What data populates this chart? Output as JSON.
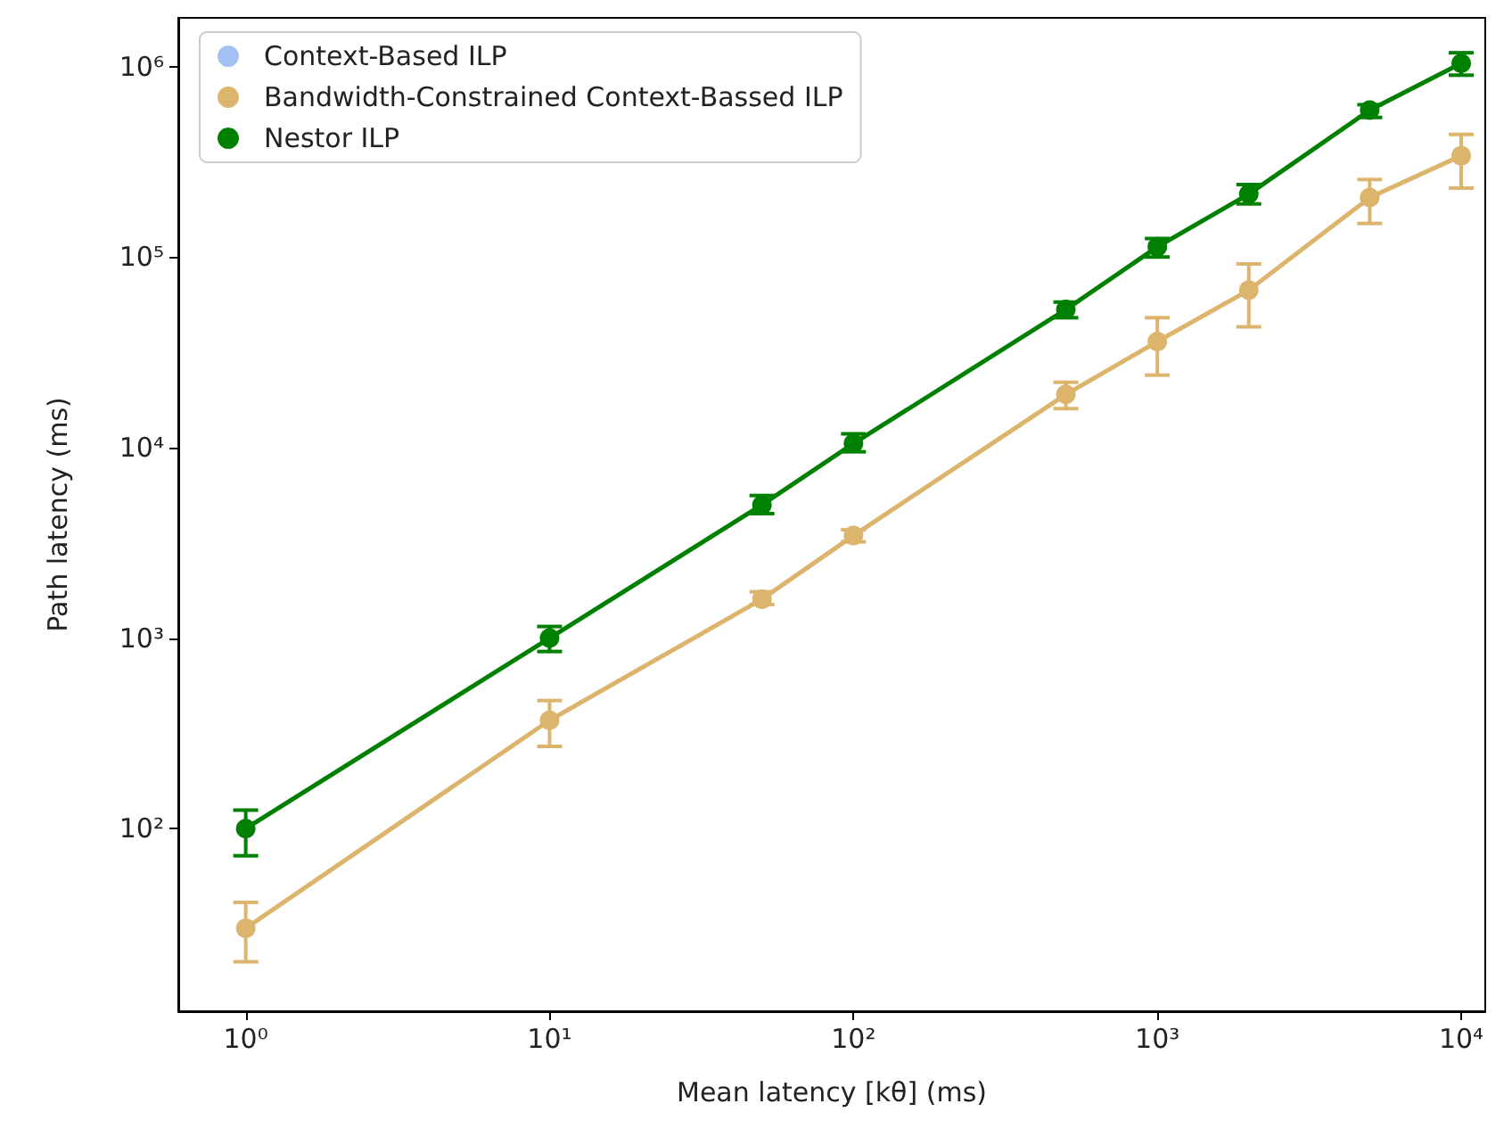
{
  "chart_data": {
    "type": "line",
    "xlabel": "Mean latency [kθ] (ms)",
    "ylabel": "Path latency (ms)",
    "log": "xy",
    "grid": false,
    "legend": "top left",
    "marker": "circle",
    "line_style": "solid",
    "x": [
      1,
      10,
      50,
      100,
      500,
      1000,
      2000,
      5000,
      10000
    ],
    "xlim": [
      0.6,
      12000
    ],
    "ylim": [
      11,
      1800000
    ],
    "xticks": [
      {
        "value": 1,
        "label": "10⁰"
      },
      {
        "value": 10,
        "label": "10¹"
      },
      {
        "value": 100,
        "label": "10²"
      },
      {
        "value": 1000,
        "label": "10³"
      },
      {
        "value": 10000,
        "label": "10⁴"
      }
    ],
    "yticks": [
      {
        "value": 100,
        "label": "10²"
      },
      {
        "value": 1000,
        "label": "10³"
      },
      {
        "value": 10000,
        "label": "10⁴"
      },
      {
        "value": 100000,
        "label": "10⁵"
      },
      {
        "value": 1000000,
        "label": "10⁶"
      }
    ],
    "series": [
      {
        "name": "Context-Based ILP",
        "color": "#a4bff2",
        "values": [
          null,
          null,
          null,
          null,
          null,
          null,
          null,
          null,
          null
        ]
      },
      {
        "name": "Bandwidth-Constrained Context-Bassed ILP",
        "color": "#dcb46c",
        "values": [
          30,
          370,
          1600,
          3450,
          19000,
          36000,
          67000,
          205000,
          340000
        ],
        "errors": [
          [
            20,
            41
          ],
          [
            270,
            470
          ],
          [
            1500,
            1750
          ],
          [
            3200,
            3700
          ],
          [
            16000,
            22000
          ],
          [
            24000,
            48000
          ],
          [
            43000,
            92000
          ],
          [
            150000,
            255000
          ],
          [
            230000,
            440000
          ]
        ]
      },
      {
        "name": "Nestor ILP",
        "color": "#008000",
        "values": [
          100,
          1000,
          5000,
          10500,
          53000,
          113000,
          214000,
          590000,
          1040000
        ],
        "errors": [
          [
            72,
            125
          ],
          [
            850,
            1150
          ],
          [
            4500,
            5600
          ],
          [
            9500,
            11800
          ],
          [
            48000,
            58000
          ],
          [
            100000,
            125000
          ],
          [
            190000,
            240000
          ],
          [
            540000,
            630000
          ],
          [
            900000,
            1180000
          ]
        ]
      }
    ]
  }
}
